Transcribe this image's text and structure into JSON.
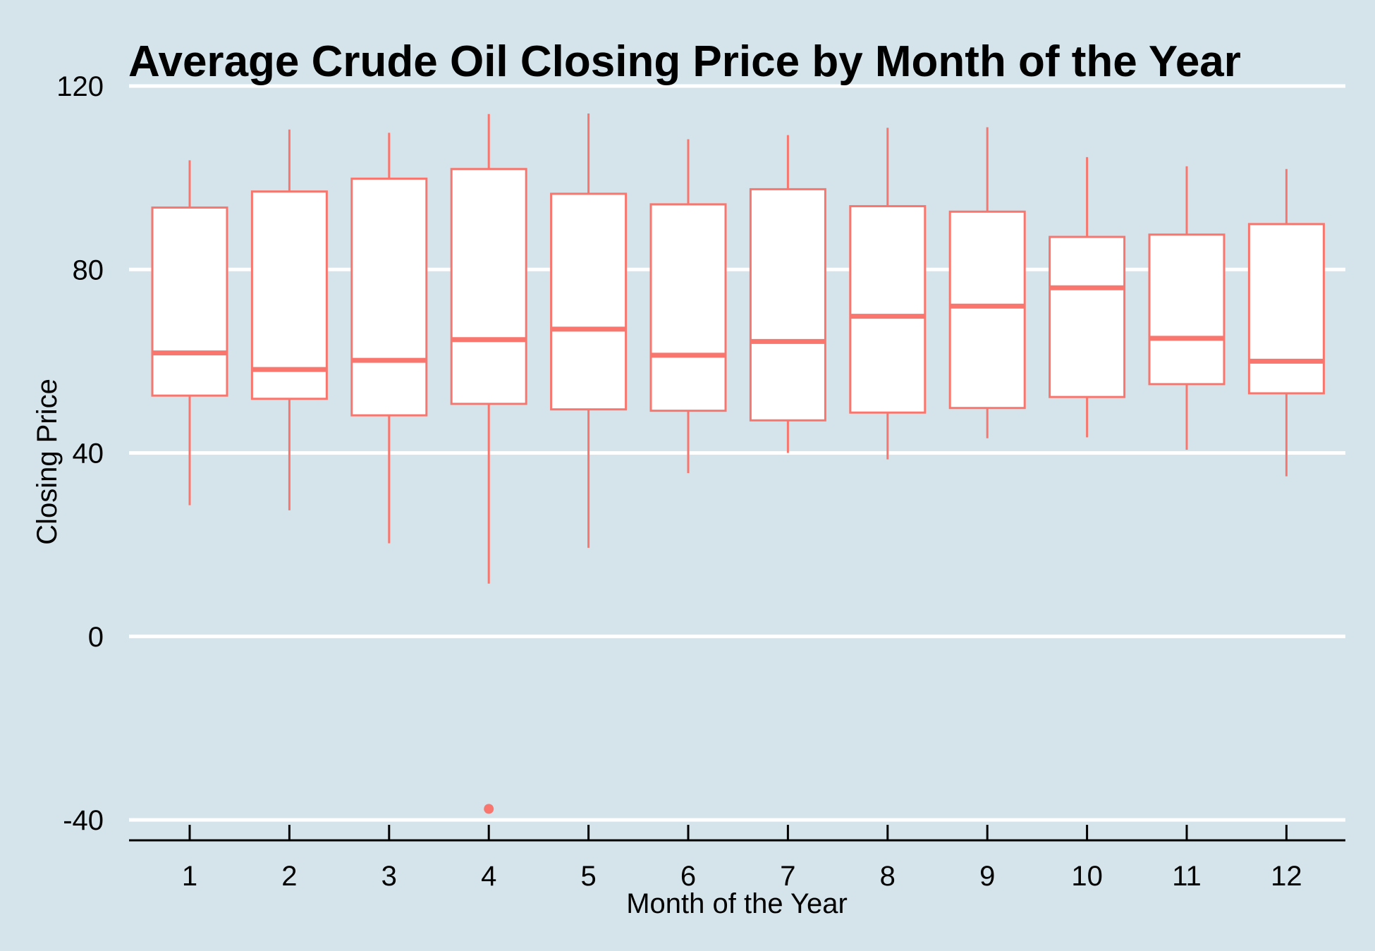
{
  "chart_data": {
    "type": "boxplot",
    "title": "Average Crude Oil Closing Price by Month of the Year",
    "xlabel": "Month of the Year",
    "ylabel": "Closing Price",
    "ylim": [
      -45,
      122
    ],
    "yticks": [
      -40,
      0,
      40,
      80,
      120
    ],
    "ytick_labels": [
      "-40",
      "0",
      "40",
      "80",
      "120"
    ],
    "categories": [
      "1",
      "2",
      "3",
      "4",
      "5",
      "6",
      "7",
      "8",
      "9",
      "10",
      "11",
      "12"
    ],
    "grid": "horizontal major lines",
    "box_color": "#f8766d",
    "box_fill": "#ffffff",
    "grid_color": "#ffffff",
    "background": "#d5e4eb",
    "boxes": [
      {
        "month": "1",
        "min": 28.6,
        "q1": 52.5,
        "median": 61.8,
        "q3": 93.5,
        "max": 103.8
      },
      {
        "month": "2",
        "min": 27.5,
        "q1": 51.8,
        "median": 58.2,
        "q3": 97.0,
        "max": 110.5
      },
      {
        "month": "3",
        "min": 20.3,
        "q1": 48.2,
        "median": 60.2,
        "q3": 99.8,
        "max": 109.8
      },
      {
        "month": "4",
        "min": 11.5,
        "q1": 50.7,
        "median": 64.7,
        "q3": 101.9,
        "max": 113.9
      },
      {
        "month": "5",
        "min": 19.3,
        "q1": 49.5,
        "median": 67.0,
        "q3": 96.5,
        "max": 114.0
      },
      {
        "month": "6",
        "min": 35.6,
        "q1": 49.2,
        "median": 61.3,
        "q3": 94.2,
        "max": 108.4
      },
      {
        "month": "7",
        "min": 40.0,
        "q1": 47.1,
        "median": 64.3,
        "q3": 97.5,
        "max": 109.3
      },
      {
        "month": "8",
        "min": 38.6,
        "q1": 48.8,
        "median": 69.8,
        "q3": 93.8,
        "max": 110.9
      },
      {
        "month": "9",
        "min": 43.2,
        "q1": 49.8,
        "median": 72.0,
        "q3": 92.6,
        "max": 111.0
      },
      {
        "month": "10",
        "min": 43.4,
        "q1": 52.2,
        "median": 76.0,
        "q3": 87.1,
        "max": 104.5
      },
      {
        "month": "11",
        "min": 40.7,
        "q1": 55.0,
        "median": 65.0,
        "q3": 87.6,
        "max": 102.5
      },
      {
        "month": "12",
        "min": 34.9,
        "q1": 53.0,
        "median": 60.0,
        "q3": 89.9,
        "max": 101.9
      }
    ],
    "outliers": [
      {
        "month": "4",
        "value": -37.6
      }
    ]
  }
}
